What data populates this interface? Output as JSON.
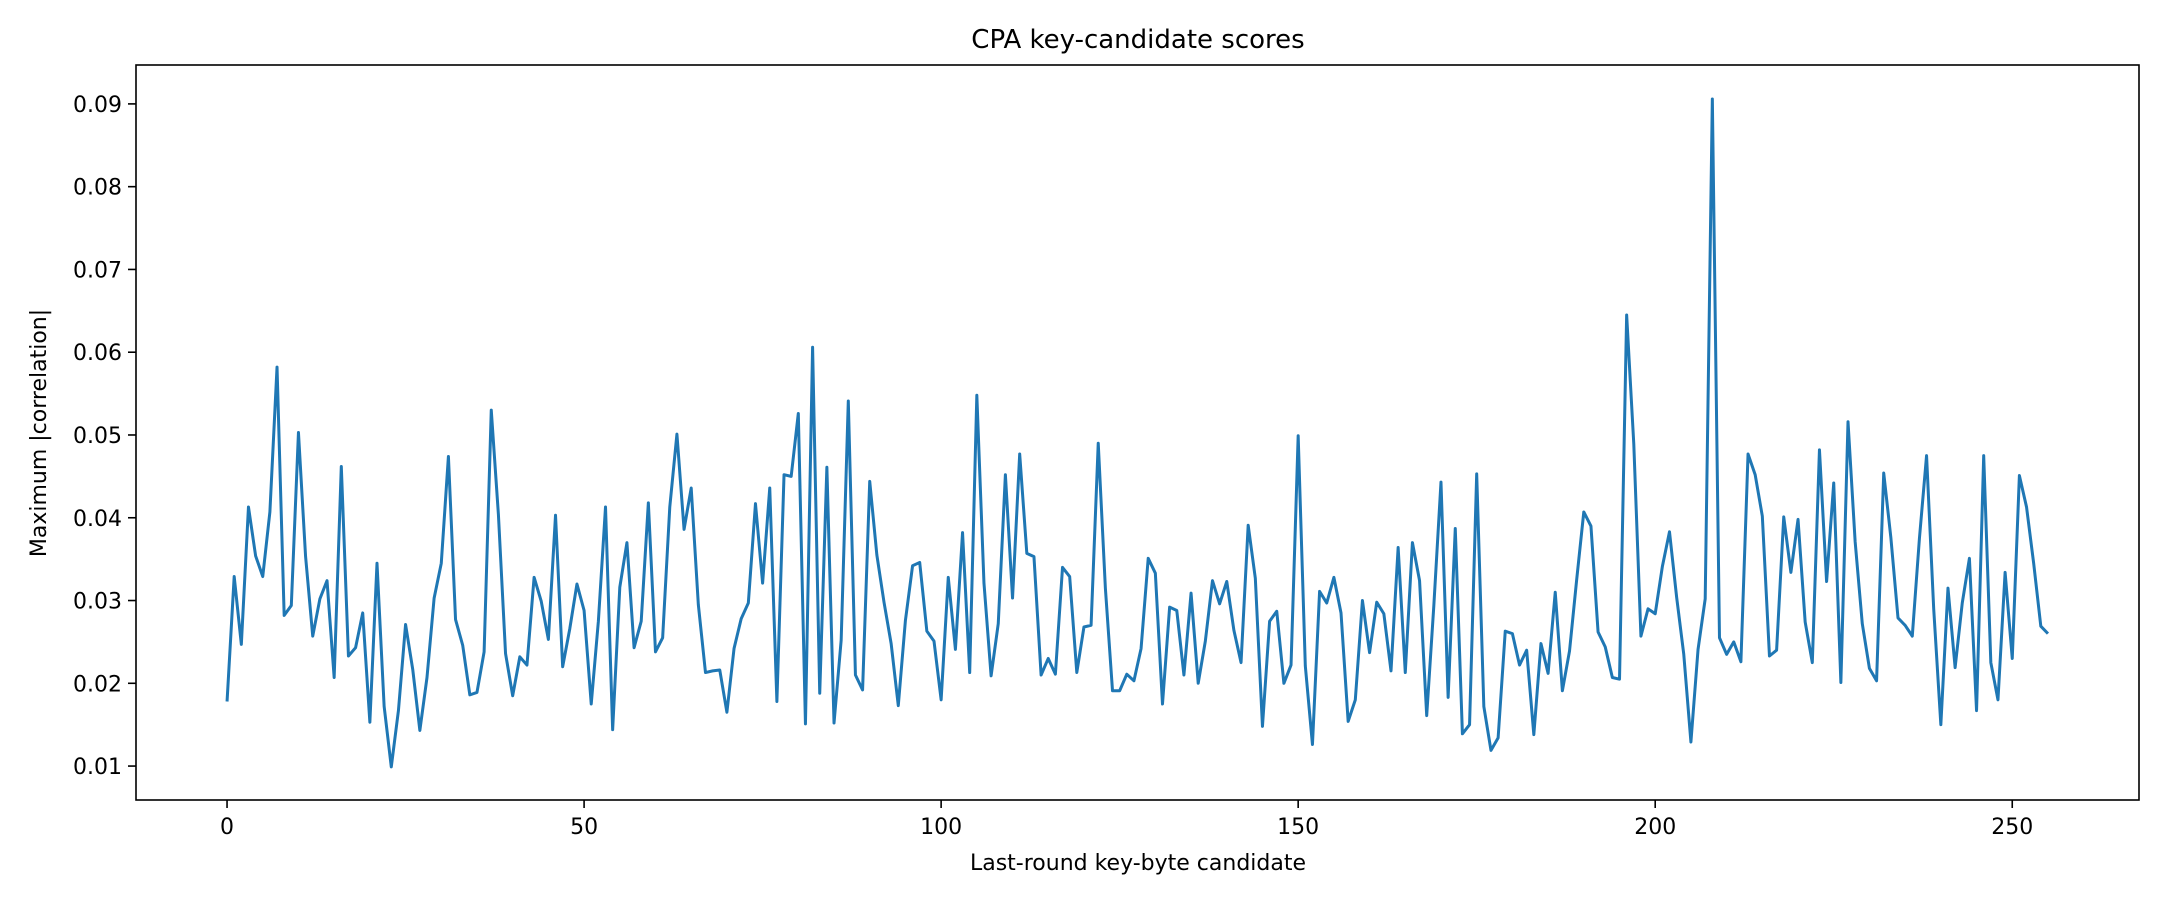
{
  "chart_data": {
    "type": "line",
    "title": "CPA key-candidate scores",
    "xlabel": "Last-round key-byte candidate",
    "ylabel": "Maximum |correlation|",
    "xlim": [
      -12.75,
      267.75
    ],
    "ylim": [
      0.0059,
      0.0947
    ],
    "xticks": [
      0,
      50,
      100,
      150,
      200,
      250
    ],
    "yticks": [
      0.01,
      0.02,
      0.03,
      0.04,
      0.05,
      0.06,
      0.07,
      0.08,
      0.09
    ],
    "xtick_labels": [
      "0",
      "50",
      "100",
      "150",
      "200",
      "250"
    ],
    "ytick_labels": [
      "0.01",
      "0.02",
      "0.03",
      "0.04",
      "0.05",
      "0.06",
      "0.07",
      "0.08",
      "0.09"
    ],
    "grid": false,
    "line_color": "#1f77b4",
    "series": [
      {
        "values": [
          0.0178,
          0.0329,
          0.0247,
          0.0413,
          0.0354,
          0.0329,
          0.0407,
          0.0582,
          0.0282,
          0.0294,
          0.0503,
          0.0353,
          0.0257,
          0.0302,
          0.0324,
          0.0207,
          0.0462,
          0.0233,
          0.0243,
          0.0285,
          0.0153,
          0.0345,
          0.0172,
          0.0099,
          0.0167,
          0.0271,
          0.0217,
          0.0143,
          0.0207,
          0.0303,
          0.0345,
          0.0474,
          0.0277,
          0.0246,
          0.0186,
          0.0189,
          0.0238,
          0.053,
          0.0404,
          0.0236,
          0.0185,
          0.0232,
          0.0222,
          0.0328,
          0.0299,
          0.0253,
          0.0403,
          0.022,
          0.0266,
          0.032,
          0.0288,
          0.0175,
          0.0275,
          0.0413,
          0.0144,
          0.0316,
          0.037,
          0.0243,
          0.0275,
          0.0418,
          0.0238,
          0.0255,
          0.0413,
          0.0501,
          0.0386,
          0.0436,
          0.0295,
          0.0213,
          0.0215,
          0.0216,
          0.0165,
          0.0242,
          0.0278,
          0.0297,
          0.0417,
          0.0321,
          0.0436,
          0.0178,
          0.0452,
          0.045,
          0.0526,
          0.0151,
          0.0606,
          0.0188,
          0.0461,
          0.0152,
          0.0252,
          0.0541,
          0.021,
          0.0192,
          0.0444,
          0.0355,
          0.0298,
          0.0248,
          0.0173,
          0.0276,
          0.0342,
          0.0346,
          0.0263,
          0.0251,
          0.018,
          0.0328,
          0.0241,
          0.0382,
          0.0213,
          0.0548,
          0.0321,
          0.0209,
          0.0272,
          0.0452,
          0.0303,
          0.0477,
          0.0357,
          0.0353,
          0.021,
          0.023,
          0.0211,
          0.034,
          0.0329,
          0.0213,
          0.0268,
          0.027,
          0.049,
          0.0315,
          0.0191,
          0.0191,
          0.0211,
          0.0203,
          0.0242,
          0.0351,
          0.0333,
          0.0175,
          0.0292,
          0.0288,
          0.021,
          0.0309,
          0.02,
          0.0251,
          0.0324,
          0.0296,
          0.0323,
          0.0264,
          0.0225,
          0.0391,
          0.0327,
          0.0148,
          0.0275,
          0.0287,
          0.02,
          0.0222,
          0.0499,
          0.0221,
          0.0126,
          0.0311,
          0.0297,
          0.0328,
          0.0285,
          0.0154,
          0.018,
          0.03,
          0.0237,
          0.0298,
          0.0284,
          0.0215,
          0.0364,
          0.0213,
          0.037,
          0.0324,
          0.0161,
          0.0294,
          0.0443,
          0.0183,
          0.0387,
          0.0139,
          0.015,
          0.0453,
          0.0172,
          0.0119,
          0.0134,
          0.0263,
          0.026,
          0.0222,
          0.024,
          0.0138,
          0.0248,
          0.0212,
          0.031,
          0.0191,
          0.0239,
          0.0325,
          0.0407,
          0.039,
          0.0262,
          0.0244,
          0.0207,
          0.0205,
          0.0645,
          0.0489,
          0.0257,
          0.029,
          0.0284,
          0.0341,
          0.0383,
          0.0304,
          0.0235,
          0.0129,
          0.0241,
          0.0302,
          0.0906,
          0.0255,
          0.0235,
          0.025,
          0.0226,
          0.0477,
          0.0452,
          0.0402,
          0.0233,
          0.024,
          0.0401,
          0.0334,
          0.0398,
          0.0274,
          0.0225,
          0.0482,
          0.0323,
          0.0442,
          0.0201,
          0.0516,
          0.0371,
          0.0272,
          0.0218,
          0.0203,
          0.0454,
          0.0376,
          0.0279,
          0.027,
          0.0257,
          0.0375,
          0.0475,
          0.029,
          0.015,
          0.0315,
          0.0219,
          0.0297,
          0.0351,
          0.0167,
          0.0475,
          0.0225,
          0.018,
          0.0334,
          0.023,
          0.0451,
          0.0413,
          0.0345,
          0.0269,
          0.026
        ]
      }
    ]
  }
}
